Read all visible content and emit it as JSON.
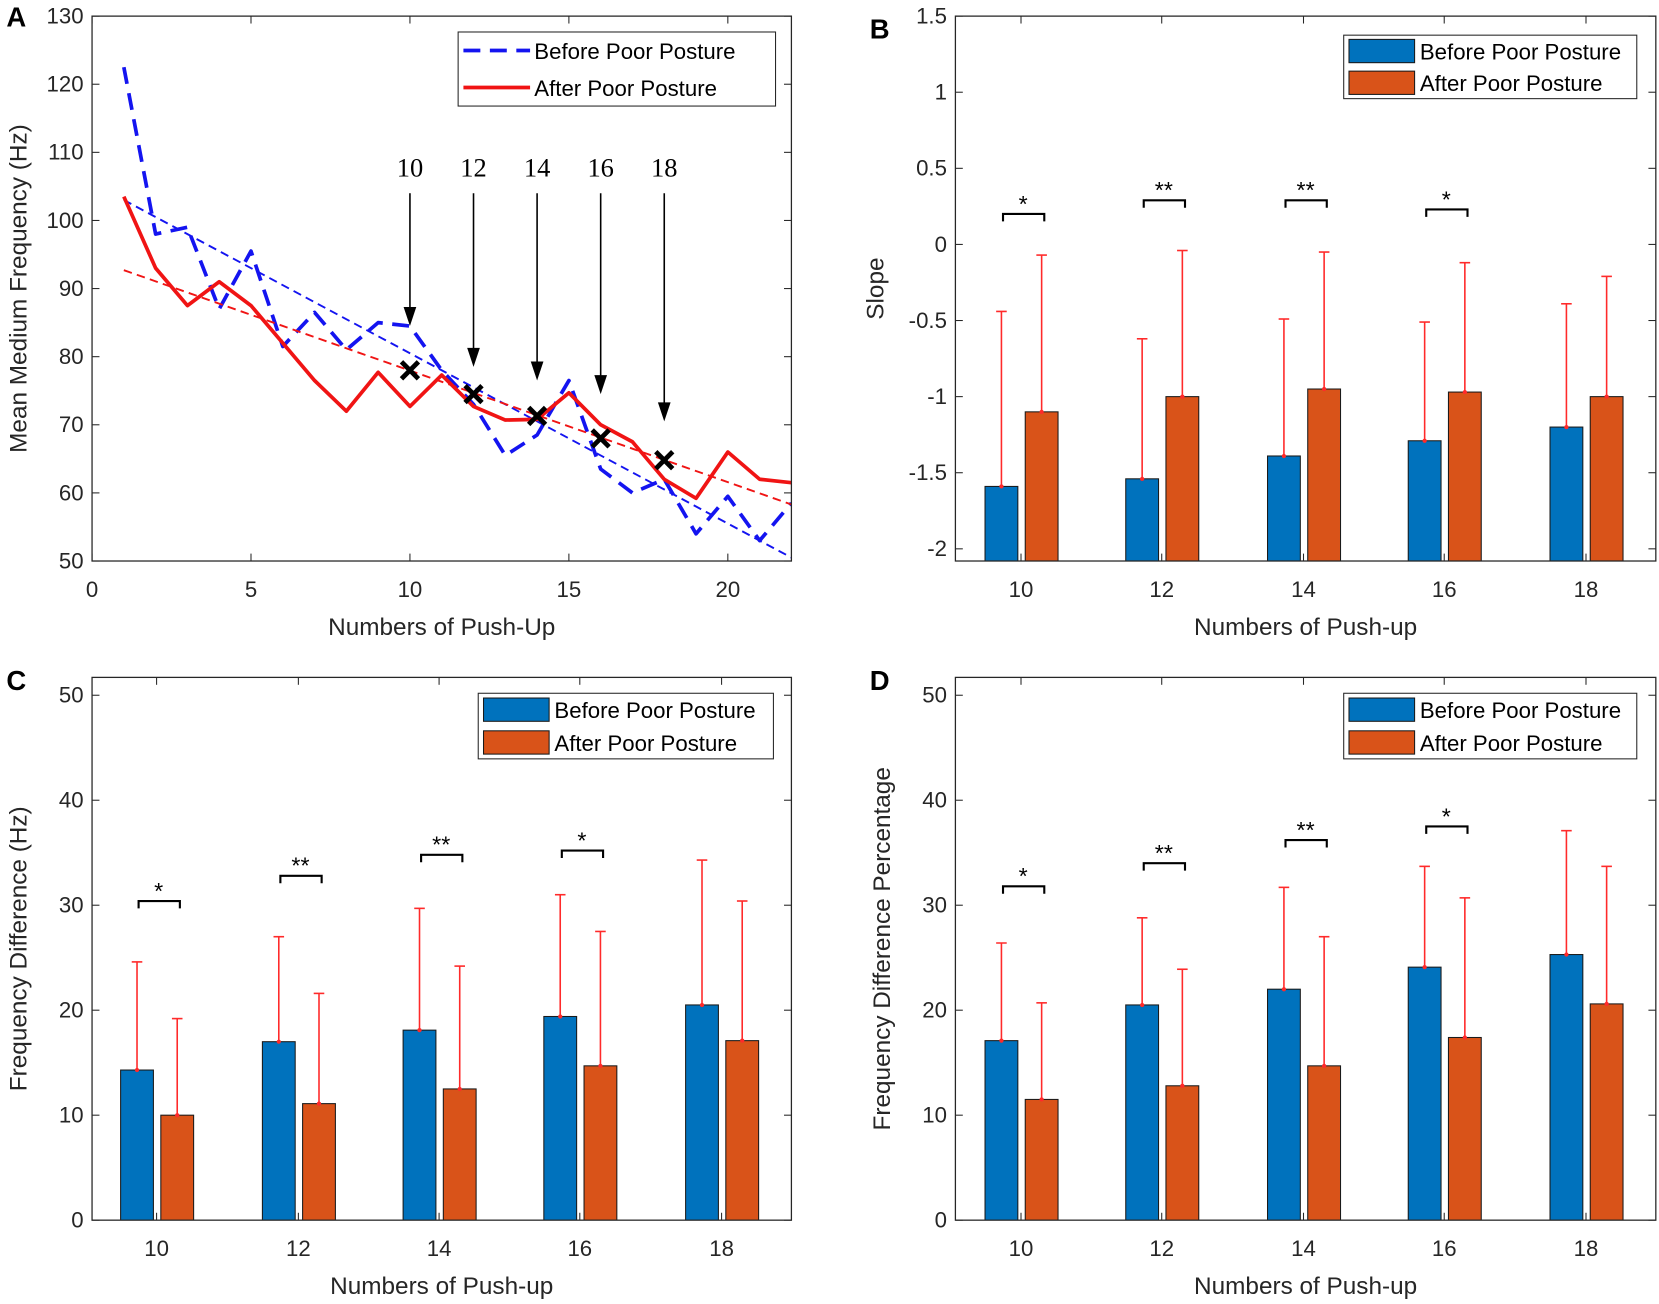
{
  "colors": {
    "before_bar": "#0072BD",
    "after_bar": "#D95319",
    "before_line": "#1414F0",
    "after_line": "#F01414",
    "error_bar": "#FF2A2A"
  },
  "chart_data": [
    {
      "panel": "A",
      "type": "line",
      "xlabel": "Numbers of Push-Up",
      "ylabel": "Mean Medium Frequency (Hz)",
      "xlim": [
        0,
        22
      ],
      "ylim": [
        50,
        130
      ],
      "xticks": [
        0,
        5,
        10,
        15,
        20
      ],
      "yticks": [
        50,
        60,
        70,
        80,
        90,
        100,
        110,
        120,
        130
      ],
      "legend": "top-right",
      "series": [
        {
          "name": "Before Poor Posture",
          "style": "dashed",
          "x": [
            1,
            2,
            3,
            4,
            5,
            6,
            7,
            8,
            9,
            10,
            11,
            12,
            13,
            14,
            15,
            16,
            17,
            18,
            19,
            20,
            21,
            22
          ],
          "y": [
            122.5,
            98,
            99,
            87,
            95.5,
            81.5,
            86.5,
            81,
            85,
            84.5,
            78,
            73,
            65.5,
            68.5,
            76.5,
            63.5,
            60,
            62,
            54,
            59.5,
            53,
            58.5
          ],
          "trend": {
            "x": [
              1,
              22
            ],
            "y": [
              103,
              50.5
            ]
          }
        },
        {
          "name": "After Poor Posture",
          "style": "solid",
          "x": [
            1,
            2,
            3,
            4,
            5,
            6,
            7,
            8,
            9,
            10,
            11,
            12,
            13,
            14,
            15,
            16,
            17,
            18,
            19,
            20,
            21,
            22
          ],
          "y": [
            103.5,
            93,
            87.5,
            91,
            87.5,
            82,
            76.5,
            72,
            77.7,
            72.7,
            77.3,
            72.7,
            70.7,
            70.8,
            74.7,
            70,
            67.5,
            62,
            59.2,
            66,
            62,
            61.5
          ],
          "trend": {
            "x": [
              1,
              22
            ],
            "y": [
              92.7,
              58.3
            ]
          }
        }
      ],
      "markers": [
        {
          "x": 10,
          "y": 78
        },
        {
          "x": 12,
          "y": 74.5
        },
        {
          "x": 14,
          "y": 71.3
        },
        {
          "x": 16,
          "y": 68
        },
        {
          "x": 18,
          "y": 64.8
        }
      ],
      "annotations": [
        {
          "text": "10",
          "x": 10,
          "arrow_from": 104,
          "arrow_to": 84.5
        },
        {
          "text": "12",
          "x": 12,
          "arrow_from": 104,
          "arrow_to": 78.5
        },
        {
          "text": "14",
          "x": 14,
          "arrow_from": 104,
          "arrow_to": 76.5
        },
        {
          "text": "16",
          "x": 16,
          "arrow_from": 104,
          "arrow_to": 74.5
        },
        {
          "text": "18",
          "x": 18,
          "arrow_from": 104,
          "arrow_to": 70.5
        }
      ]
    },
    {
      "panel": "B",
      "type": "bar",
      "xlabel": "Numbers of Push-up",
      "ylabel": "Slope",
      "ylim": [
        -2.08,
        1.5
      ],
      "yticks": [
        -2,
        -1.5,
        -1,
        -0.5,
        0,
        0.5,
        1,
        1.5
      ],
      "legend": "top-right",
      "categories": [
        "10",
        "12",
        "14",
        "16",
        "18"
      ],
      "series": [
        {
          "name": "Before Poor Posture",
          "values": [
            -1.59,
            -1.54,
            -1.39,
            -1.29,
            -1.2
          ],
          "error_upper": [
            -0.44,
            -0.62,
            -0.49,
            -0.51,
            -0.39
          ]
        },
        {
          "name": "After Poor Posture",
          "values": [
            -1.1,
            -1.0,
            -0.95,
            -0.97,
            -1.0
          ],
          "error_upper": [
            -0.07,
            -0.04,
            -0.05,
            -0.12,
            -0.21
          ]
        }
      ],
      "significance": [
        {
          "category": "10",
          "label": "*",
          "y": 0.2
        },
        {
          "category": "12",
          "label": "**",
          "y": 0.29
        },
        {
          "category": "14",
          "label": "**",
          "y": 0.29
        },
        {
          "category": "16",
          "label": "*",
          "y": 0.23
        }
      ]
    },
    {
      "panel": "C",
      "type": "bar",
      "xlabel": "Numbers of Push-up",
      "ylabel": "Frequency Difference (Hz)",
      "ylim": [
        0,
        51.7
      ],
      "yticks": [
        0,
        10,
        20,
        30,
        40,
        50
      ],
      "legend": "top-right",
      "categories": [
        "10",
        "12",
        "14",
        "16",
        "18"
      ],
      "series": [
        {
          "name": "Before Poor Posture",
          "values": [
            14.3,
            17.0,
            18.1,
            19.4,
            20.5
          ],
          "error_upper": [
            24.6,
            27.0,
            29.7,
            31.0,
            34.3
          ]
        },
        {
          "name": "After Poor Posture",
          "values": [
            10.0,
            11.1,
            12.5,
            14.7,
            17.1
          ],
          "error_upper": [
            19.2,
            21.6,
            24.2,
            27.5,
            30.4
          ]
        }
      ],
      "significance": [
        {
          "category": "10",
          "label": "*",
          "y": 30.4
        },
        {
          "category": "12",
          "label": "**",
          "y": 32.8
        },
        {
          "category": "14",
          "label": "**",
          "y": 34.8
        },
        {
          "category": "16",
          "label": "*",
          "y": 35.2
        }
      ]
    },
    {
      "panel": "D",
      "type": "bar",
      "xlabel": "Numbers of Push-up",
      "ylabel": "Frequency Difference Percentage",
      "ylim": [
        0,
        51.7
      ],
      "yticks": [
        0,
        10,
        20,
        30,
        40,
        50
      ],
      "legend": "top-right",
      "categories": [
        "10",
        "12",
        "14",
        "16",
        "18"
      ],
      "series": [
        {
          "name": "Before Poor Posture",
          "values": [
            17.1,
            20.5,
            22.0,
            24.1,
            25.3
          ],
          "error_upper": [
            26.4,
            28.8,
            31.7,
            33.7,
            37.1
          ]
        },
        {
          "name": "After Poor Posture",
          "values": [
            11.5,
            12.8,
            14.7,
            17.4,
            20.6
          ],
          "error_upper": [
            20.7,
            23.9,
            27.0,
            30.7,
            33.7
          ]
        }
      ],
      "significance": [
        {
          "category": "10",
          "label": "*",
          "y": 31.8
        },
        {
          "category": "12",
          "label": "**",
          "y": 34.0
        },
        {
          "category": "14",
          "label": "**",
          "y": 36.2
        },
        {
          "category": "16",
          "label": "*",
          "y": 37.5
        }
      ]
    }
  ]
}
